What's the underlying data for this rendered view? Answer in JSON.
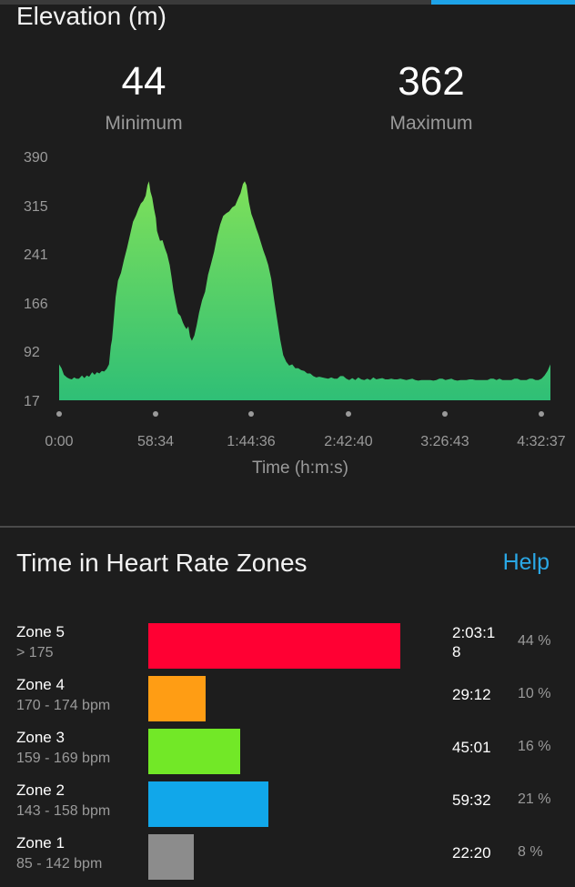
{
  "elevation": {
    "title": "Elevation (m)",
    "min_value": "44",
    "min_label": "Minimum",
    "max_value": "362",
    "max_label": "Maximum"
  },
  "chart_data": {
    "type": "area",
    "title": "Elevation (m)",
    "xlabel": "Time (h:m:s)",
    "ylabel": "",
    "y_ticks": [
      "390",
      "315",
      "241",
      "166",
      "92",
      "17"
    ],
    "x_ticks": [
      "0:00",
      "58:34",
      "1:44:36",
      "2:42:40",
      "3:26:43",
      "4:32:37"
    ],
    "ylim": [
      17,
      390
    ],
    "duration_seconds": 16357,
    "fill_color_top": "#7ee05a",
    "fill_color_bottom": "#2fbf76",
    "points": [
      [
        0,
        72
      ],
      [
        80,
        66
      ],
      [
        160,
        56
      ],
      [
        260,
        52
      ],
      [
        340,
        50
      ],
      [
        420,
        49
      ],
      [
        500,
        52
      ],
      [
        580,
        50
      ],
      [
        660,
        50
      ],
      [
        760,
        55
      ],
      [
        840,
        51
      ],
      [
        920,
        55
      ],
      [
        1000,
        53
      ],
      [
        1100,
        60
      ],
      [
        1180,
        56
      ],
      [
        1260,
        60
      ],
      [
        1340,
        58
      ],
      [
        1420,
        62
      ],
      [
        1500,
        61
      ],
      [
        1580,
        65
      ],
      [
        1660,
        72
      ],
      [
        1720,
        100
      ],
      [
        1760,
        110
      ],
      [
        1800,
        130
      ],
      [
        1880,
        175
      ],
      [
        1960,
        200
      ],
      [
        2060,
        212
      ],
      [
        2160,
        232
      ],
      [
        2260,
        250
      ],
      [
        2360,
        270
      ],
      [
        2460,
        290
      ],
      [
        2560,
        300
      ],
      [
        2640,
        310
      ],
      [
        2720,
        318
      ],
      [
        2800,
        322
      ],
      [
        2880,
        330
      ],
      [
        2940,
        346
      ],
      [
        2990,
        352
      ],
      [
        3040,
        336
      ],
      [
        3100,
        327
      ],
      [
        3160,
        310
      ],
      [
        3220,
        296
      ],
      [
        3260,
        276
      ],
      [
        3300,
        270
      ],
      [
        3360,
        261
      ],
      [
        3440,
        262
      ],
      [
        3520,
        250
      ],
      [
        3600,
        240
      ],
      [
        3680,
        224
      ],
      [
        3740,
        206
      ],
      [
        3800,
        186
      ],
      [
        3880,
        167
      ],
      [
        3960,
        150
      ],
      [
        4040,
        146
      ],
      [
        4120,
        136
      ],
      [
        4180,
        130
      ],
      [
        4240,
        126
      ],
      [
        4300,
        130
      ],
      [
        4360,
        114
      ],
      [
        4420,
        108
      ],
      [
        4500,
        116
      ],
      [
        4580,
        132
      ],
      [
        4660,
        151
      ],
      [
        4760,
        170
      ],
      [
        4860,
        183
      ],
      [
        4960,
        209
      ],
      [
        5060,
        226
      ],
      [
        5160,
        244
      ],
      [
        5260,
        268
      ],
      [
        5360,
        286
      ],
      [
        5460,
        299
      ],
      [
        5560,
        303
      ],
      [
        5660,
        306
      ],
      [
        5760,
        312
      ],
      [
        5860,
        315
      ],
      [
        5960,
        326
      ],
      [
        6040,
        334
      ],
      [
        6120,
        348
      ],
      [
        6180,
        352
      ],
      [
        6240,
        346
      ],
      [
        6320,
        320
      ],
      [
        6400,
        302
      ],
      [
        6480,
        292
      ],
      [
        6560,
        280
      ],
      [
        6640,
        270
      ],
      [
        6720,
        258
      ],
      [
        6800,
        246
      ],
      [
        6880,
        236
      ],
      [
        6960,
        224
      ],
      [
        7060,
        203
      ],
      [
        7160,
        170
      ],
      [
        7260,
        140
      ],
      [
        7360,
        110
      ],
      [
        7460,
        86
      ],
      [
        7560,
        76
      ],
      [
        7660,
        70
      ],
      [
        7760,
        72
      ],
      [
        7860,
        66
      ],
      [
        7960,
        66
      ],
      [
        8060,
        63
      ],
      [
        8160,
        62
      ],
      [
        8260,
        58
      ],
      [
        8360,
        58
      ],
      [
        8460,
        54
      ],
      [
        8560,
        52
      ],
      [
        8660,
        53
      ],
      [
        8760,
        52
      ],
      [
        8860,
        51
      ],
      [
        8960,
        50
      ],
      [
        9060,
        52
      ],
      [
        9160,
        50
      ],
      [
        9260,
        50
      ],
      [
        9360,
        54
      ],
      [
        9460,
        54
      ],
      [
        9560,
        50
      ],
      [
        9660,
        48
      ],
      [
        9760,
        51
      ],
      [
        9860,
        48
      ],
      [
        9960,
        52
      ],
      [
        10060,
        49
      ],
      [
        10160,
        48
      ],
      [
        10260,
        50
      ],
      [
        10360,
        48
      ],
      [
        10460,
        52
      ],
      [
        10560,
        49
      ],
      [
        10660,
        50
      ],
      [
        10760,
        51
      ],
      [
        10860,
        49
      ],
      [
        10960,
        49
      ],
      [
        11060,
        50
      ],
      [
        11160,
        49
      ],
      [
        11260,
        49
      ],
      [
        11360,
        50
      ],
      [
        11460,
        49
      ],
      [
        11560,
        48
      ],
      [
        11660,
        49
      ],
      [
        11760,
        50
      ],
      [
        11860,
        48
      ],
      [
        11960,
        47
      ],
      [
        12060,
        48
      ],
      [
        12160,
        48
      ],
      [
        12260,
        48
      ],
      [
        12360,
        48
      ],
      [
        12460,
        47
      ],
      [
        12560,
        48
      ],
      [
        12660,
        50
      ],
      [
        12760,
        50
      ],
      [
        12860,
        48
      ],
      [
        12960,
        49
      ],
      [
        13060,
        50
      ],
      [
        13160,
        48
      ],
      [
        13260,
        47
      ],
      [
        13360,
        48
      ],
      [
        13460,
        48
      ],
      [
        13560,
        48
      ],
      [
        13660,
        49
      ],
      [
        13760,
        49
      ],
      [
        13860,
        48
      ],
      [
        13960,
        48
      ],
      [
        14060,
        48
      ],
      [
        14160,
        48
      ],
      [
        14260,
        48
      ],
      [
        14360,
        50
      ],
      [
        14460,
        50
      ],
      [
        14560,
        48
      ],
      [
        14660,
        50
      ],
      [
        14760,
        48
      ],
      [
        14860,
        48
      ],
      [
        14960,
        48
      ],
      [
        15060,
        48
      ],
      [
        15160,
        50
      ],
      [
        15260,
        50
      ],
      [
        15360,
        48
      ],
      [
        15460,
        48
      ],
      [
        15560,
        48
      ],
      [
        15660,
        50
      ],
      [
        15760,
        50
      ],
      [
        15860,
        48
      ],
      [
        15960,
        48
      ],
      [
        16060,
        50
      ],
      [
        16160,
        55
      ],
      [
        16260,
        62
      ],
      [
        16357,
        72
      ]
    ]
  },
  "hr_zones": {
    "title": "Time in Heart Rate Zones",
    "help_label": "Help",
    "zones": [
      {
        "name": "Zone 5",
        "range": "> 175",
        "time": "2:03:18",
        "pct": "44 %",
        "fraction": 0.44,
        "color": "#ff0033"
      },
      {
        "name": "Zone 4",
        "range": "170 - 174 bpm",
        "time": "29:12",
        "pct": "10 %",
        "fraction": 0.1,
        "color": "#ff9d14"
      },
      {
        "name": "Zone 3",
        "range": "159 - 169 bpm",
        "time": "45:01",
        "pct": "16 %",
        "fraction": 0.16,
        "color": "#72e827"
      },
      {
        "name": "Zone 2",
        "range": "143 - 158 bpm",
        "time": "59:32",
        "pct": "21 %",
        "fraction": 0.21,
        "color": "#11a7ea"
      },
      {
        "name": "Zone 1",
        "range": "85 - 142 bpm",
        "time": "22:20",
        "pct": "8 %",
        "fraction": 0.08,
        "color": "#8c8c8c"
      }
    ]
  }
}
